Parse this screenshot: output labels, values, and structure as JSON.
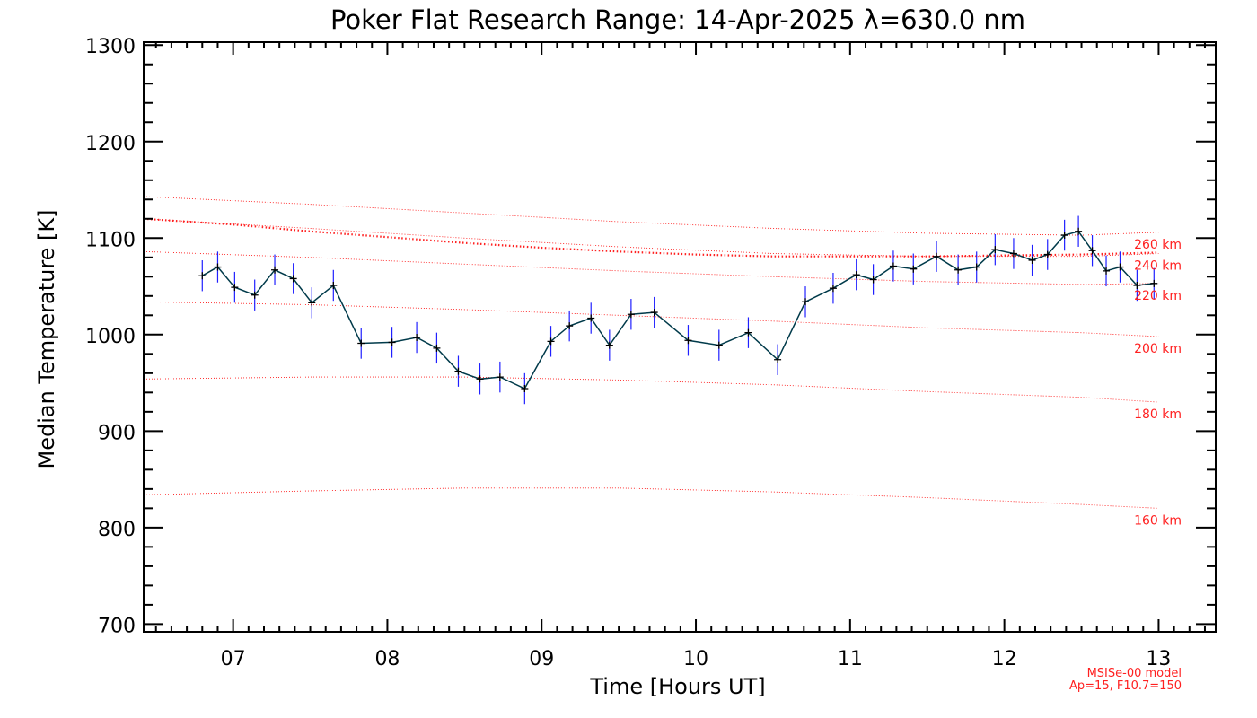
{
  "chart_data": {
    "type": "line",
    "title": "Poker Flat Research Range: 14-Apr-2025 λ=630.0 nm",
    "xlabel": "Time [Hours UT]",
    "ylabel": "Median Temperature [K]",
    "xlim": [
      6.42,
      13.37
    ],
    "ylim": [
      692,
      1303
    ],
    "x_ticks": [
      7,
      8,
      9,
      10,
      11,
      12,
      13
    ],
    "x_tick_labels": [
      "07",
      "08",
      "09",
      "10",
      "11",
      "12",
      "13"
    ],
    "y_ticks": [
      700,
      800,
      900,
      1000,
      1100,
      1200,
      1300
    ],
    "y_tick_labels": [
      "700",
      "800",
      "900",
      "1000",
      "1100",
      "1200",
      "1300"
    ],
    "colors": {
      "series": "#003a4a",
      "errorbar": "#2020ff",
      "model": "#ff2020",
      "axis": "#000000"
    },
    "series": {
      "name": "Median Temperature",
      "x": [
        6.8,
        6.9,
        7.01,
        7.14,
        7.27,
        7.39,
        7.51,
        7.65,
        7.83,
        8.03,
        8.19,
        8.32,
        8.46,
        8.6,
        8.73,
        8.89,
        9.06,
        9.18,
        9.32,
        9.44,
        9.58,
        9.73,
        9.95,
        10.15,
        10.34,
        10.53,
        10.71,
        10.89,
        11.04,
        11.15,
        11.28,
        11.41,
        11.56,
        11.7,
        11.82,
        11.94,
        12.06,
        12.18,
        12.28,
        12.39,
        12.48,
        12.57,
        12.66,
        12.75,
        12.86,
        12.97
      ],
      "y": [
        1061,
        1070,
        1049,
        1041,
        1067,
        1058,
        1033,
        1051,
        991,
        992,
        997,
        986,
        962,
        954,
        956,
        944,
        993,
        1009,
        1017,
        989,
        1021,
        1023,
        994,
        989,
        1002,
        974,
        1034,
        1048,
        1062,
        1057,
        1071,
        1068,
        1081,
        1067,
        1070,
        1088,
        1084,
        1077,
        1083,
        1103,
        1107,
        1087,
        1066,
        1070,
        1051,
        1053
      ],
      "error": [
        16,
        16,
        16,
        16,
        16,
        16,
        16,
        16,
        16,
        16,
        16,
        16,
        16,
        16,
        16,
        16,
        16,
        16,
        16,
        16,
        16,
        16,
        16,
        16,
        16,
        16,
        16,
        16,
        16,
        16,
        16,
        16,
        16,
        16,
        16,
        16,
        16,
        16,
        16,
        16,
        16,
        16,
        16,
        16,
        16,
        16
      ]
    },
    "model_curve": {
      "name": "MSIS mean",
      "x": [
        6.42,
        7.0,
        7.5,
        8.0,
        8.5,
        9.0,
        9.5,
        10.0,
        10.5,
        11.0,
        11.5,
        12.0,
        12.5,
        13.0
      ],
      "y": [
        1120,
        1114,
        1107,
        1101,
        1095,
        1090,
        1086,
        1083,
        1081,
        1081,
        1081,
        1082,
        1083,
        1085
      ]
    },
    "altitude_curves": [
      {
        "label": "160 km",
        "x": [
          6.42,
          7.5,
          8.5,
          9.5,
          10.5,
          11.5,
          12.5,
          13.0
        ],
        "y": [
          834,
          838,
          841,
          841,
          837,
          831,
          824,
          820
        ]
      },
      {
        "label": "180 km",
        "x": [
          6.42,
          7.5,
          8.5,
          9.5,
          10.5,
          11.5,
          12.5,
          13.0
        ],
        "y": [
          954,
          956,
          956,
          953,
          948,
          941,
          935,
          930
        ]
      },
      {
        "label": "200 km",
        "x": [
          6.42,
          7.5,
          8.5,
          9.5,
          10.5,
          11.5,
          12.5,
          13.0
        ],
        "y": [
          1034,
          1031,
          1026,
          1020,
          1014,
          1007,
          1002,
          998
        ]
      },
      {
        "label": "220 km",
        "x": [
          6.42,
          7.5,
          8.5,
          9.5,
          10.5,
          11.5,
          12.5,
          13.0
        ],
        "y": [
          1086,
          1080,
          1073,
          1066,
          1060,
          1055,
          1052,
          1053
        ]
      },
      {
        "label": "240 km",
        "x": [
          6.42,
          7.5,
          8.5,
          9.5,
          10.5,
          11.5,
          12.5,
          13.0
        ],
        "y": [
          1120,
          1110,
          1100,
          1091,
          1084,
          1081,
          1081,
          1084
        ]
      },
      {
        "label": "260 km",
        "x": [
          6.42,
          7.5,
          8.5,
          9.5,
          10.5,
          11.5,
          12.5,
          13.0
        ],
        "y": [
          1143,
          1135,
          1126,
          1117,
          1110,
          1105,
          1103,
          1106
        ]
      }
    ],
    "model_note": [
      "MSISe-00 model",
      "Ap=15, F10.7=150"
    ]
  }
}
